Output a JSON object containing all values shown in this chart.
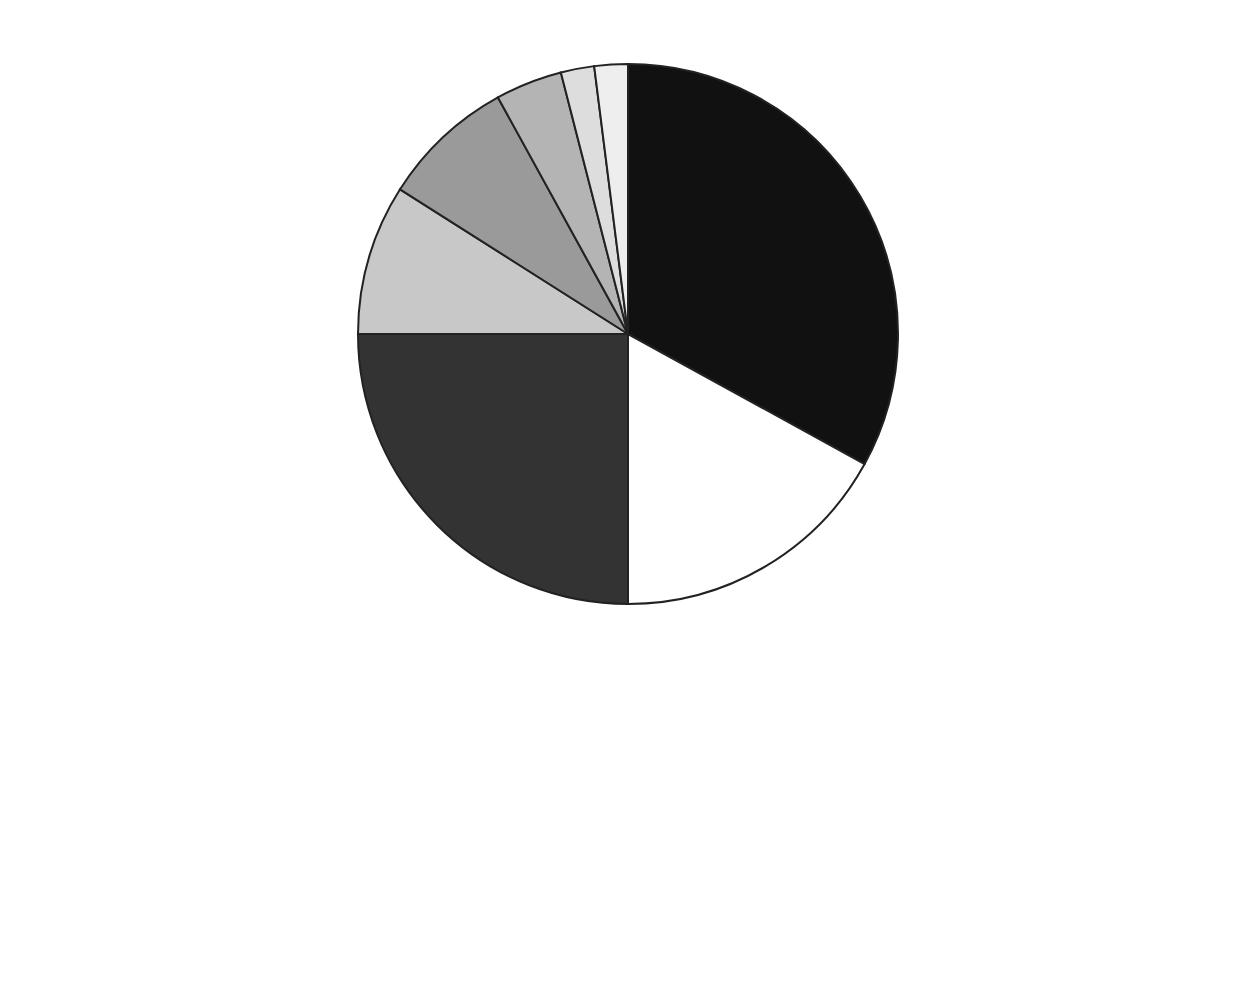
{
  "chart_data": {
    "type": "pie",
    "categories": [
      null,
      null,
      null,
      null,
      null,
      null,
      null,
      null
    ],
    "values": [
      33,
      17,
      25,
      9,
      8,
      4,
      2,
      2
    ],
    "colors": [
      "#111111",
      "#ffffff",
      "#333333",
      "#c8c8c8",
      "#9a9a9a",
      "#b4b4b4",
      "#dddddd",
      "#eeeeee"
    ],
    "legend": false
  }
}
